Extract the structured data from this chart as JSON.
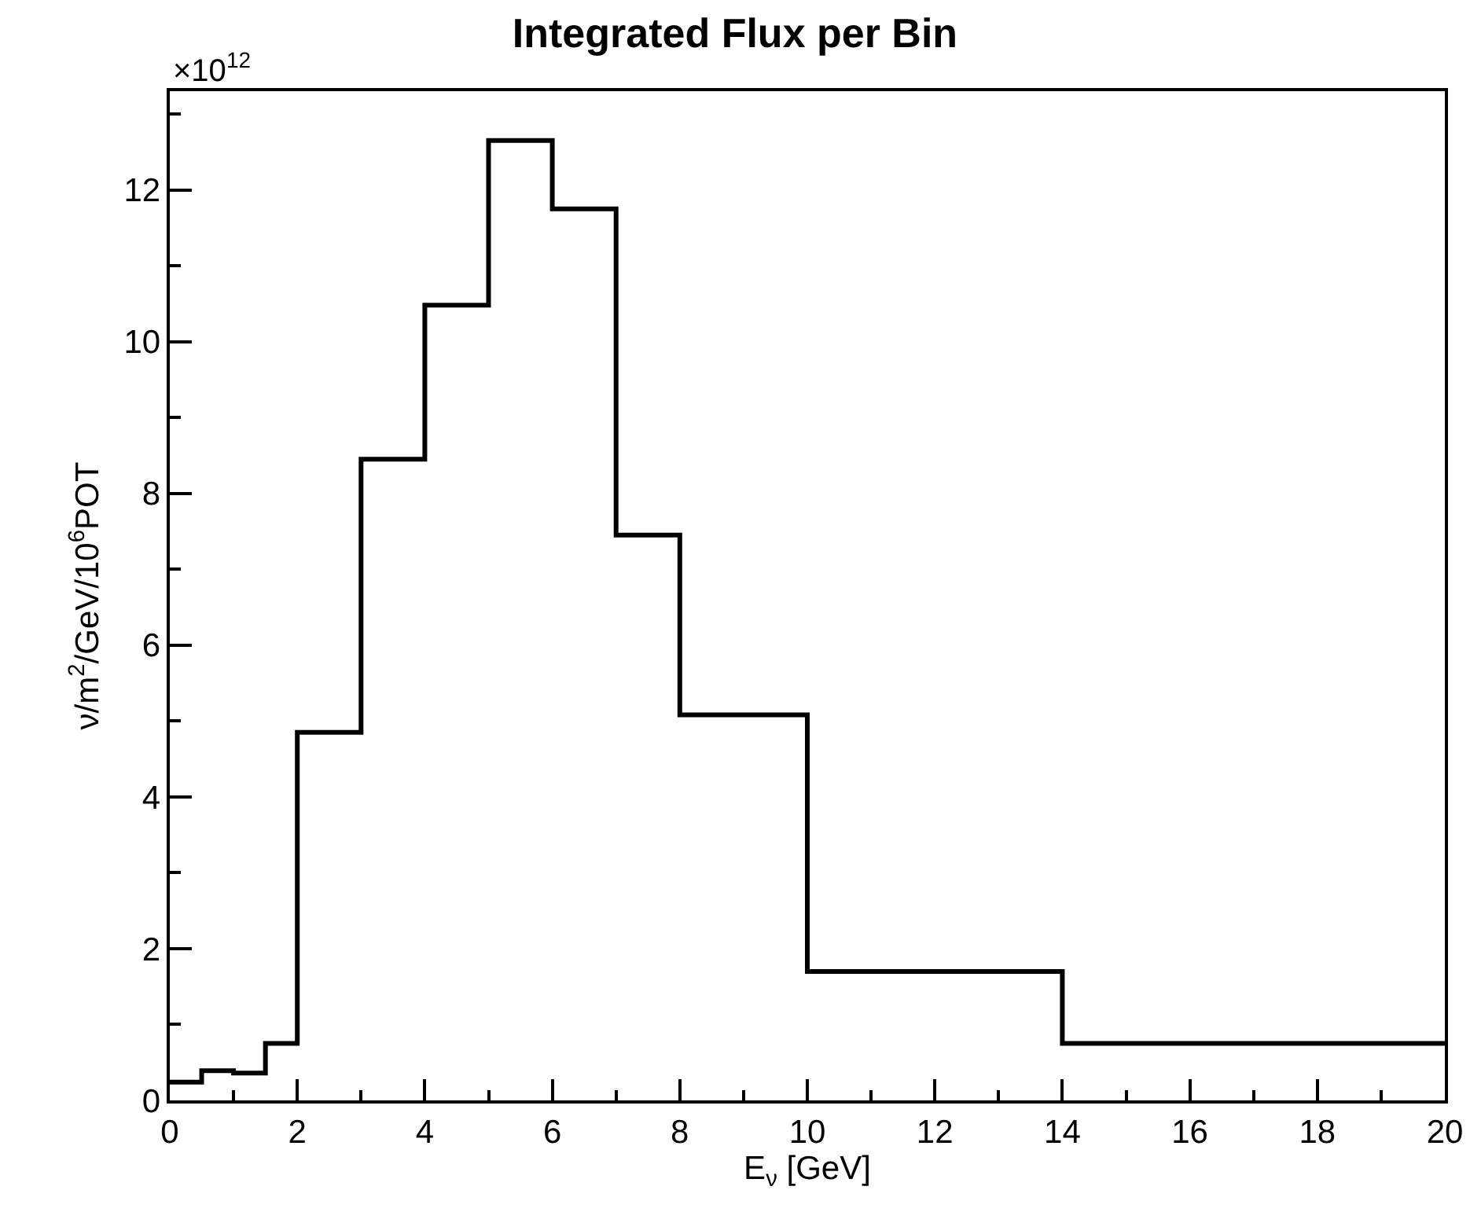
{
  "chart_data": {
    "type": "histogram",
    "title": "Integrated Flux per Bin",
    "xlabel": "E$_{ν}$ [GeV]",
    "ylabel": "ν/m$^{2}$/GeV/10$^{6}$POT",
    "annotations": [
      "×10$^{12}$"
    ],
    "bins": [
      0,
      0.5,
      1,
      1.5,
      2,
      3,
      4,
      5,
      6,
      7,
      8,
      10,
      14,
      20
    ],
    "values": [
      0.24,
      0.39,
      0.36,
      0.75,
      4.85,
      8.45,
      10.48,
      12.65,
      11.75,
      7.45,
      5.08,
      1.7,
      0.75
    ],
    "color": "#000000",
    "xlim": [
      0,
      20
    ],
    "xticks": [
      0,
      2,
      4,
      6,
      8,
      10,
      12,
      14,
      16,
      18,
      20
    ],
    "ylim": [
      0,
      13.3
    ],
    "yticks": [
      0,
      2,
      4,
      6,
      8,
      10,
      12
    ],
    "grid": false
  }
}
